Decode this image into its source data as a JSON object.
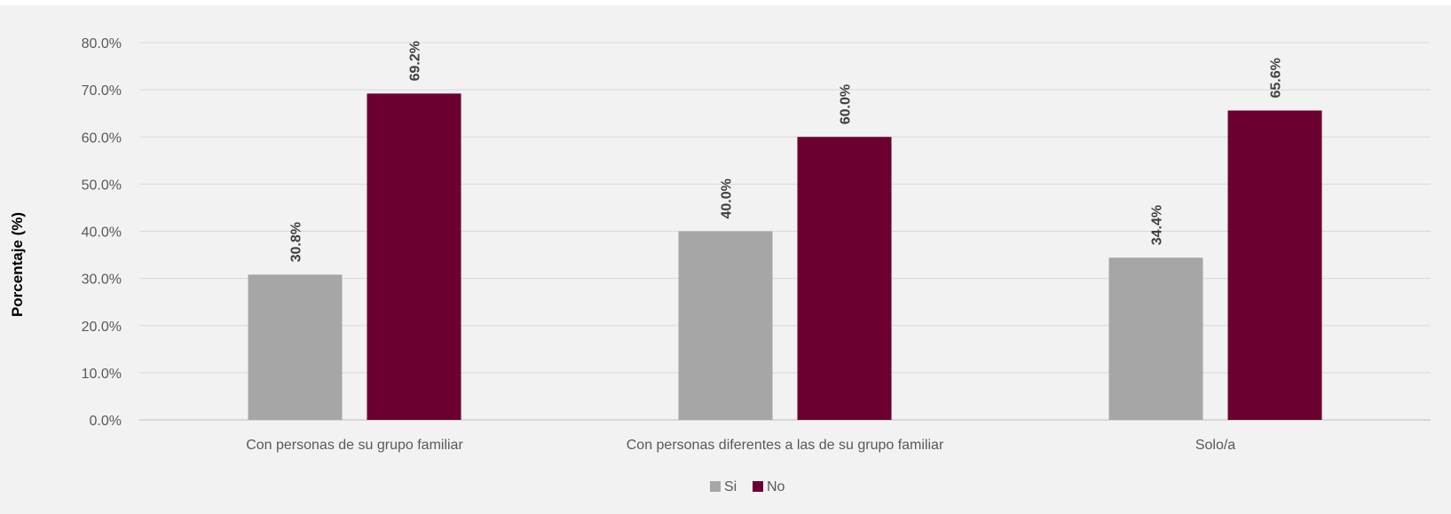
{
  "chart_data": {
    "type": "bar",
    "title": "",
    "xlabel": "",
    "ylabel": "Porcentaje (%)",
    "ylim": [
      0,
      80
    ],
    "y_ticks": [
      "0.0%",
      "10.0%",
      "20.0%",
      "30.0%",
      "40.0%",
      "50.0%",
      "60.0%",
      "70.0%",
      "80.0%"
    ],
    "y_tick_values": [
      0,
      10,
      20,
      30,
      40,
      50,
      60,
      70,
      80
    ],
    "grid": true,
    "legend_position": "bottom",
    "categories": [
      "Con personas de su grupo familiar",
      "Con personas diferentes a las de su grupo familiar",
      "Solo/a"
    ],
    "series": [
      {
        "name": "Si",
        "color": "#a6a6a6",
        "values": [
          30.8,
          40.0,
          34.4
        ],
        "labels": [
          "30.8%",
          "40.0%",
          "34.4%"
        ]
      },
      {
        "name": "No",
        "color": "#6b0030",
        "values": [
          69.2,
          60.0,
          65.6
        ],
        "labels": [
          "69.2%",
          "60.0%",
          "65.6%"
        ]
      }
    ]
  }
}
